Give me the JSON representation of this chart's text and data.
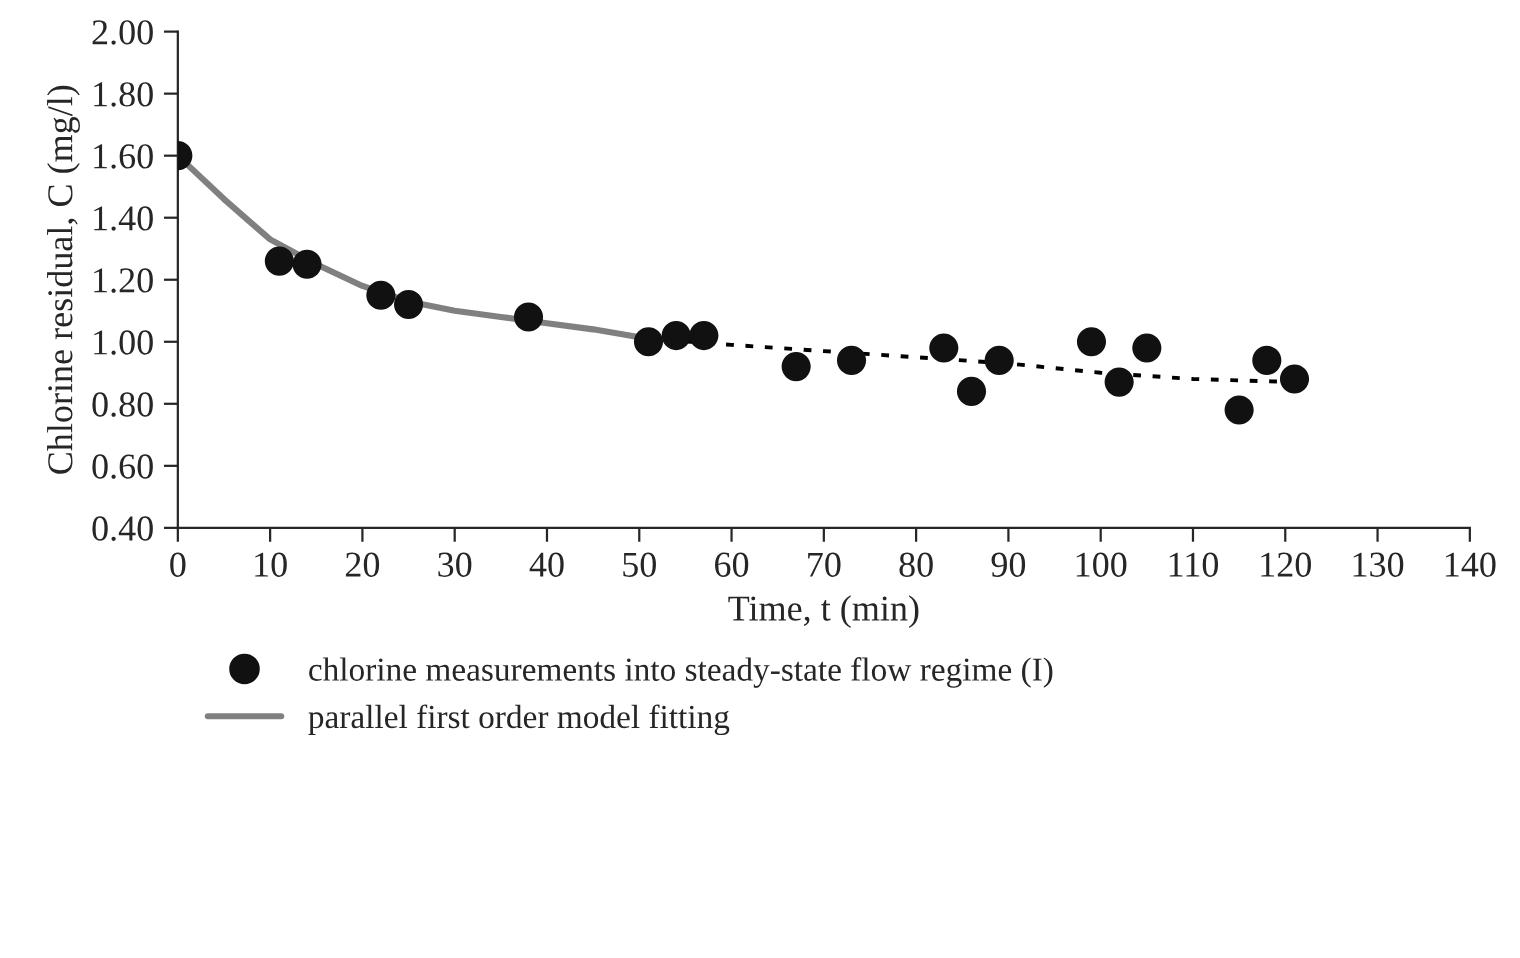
{
  "chart_data": {
    "type": "scatter",
    "xlabel": "Time, t (min)",
    "ylabel": "Chlorine residual, C (mg/l)",
    "xlim": [
      0,
      140
    ],
    "xticks": [
      0,
      10,
      20,
      30,
      40,
      50,
      60,
      70,
      80,
      90,
      100,
      110,
      120,
      130,
      140
    ],
    "ylim": [
      0.4,
      2.0
    ],
    "yticks": [
      {
        "value": 0.4,
        "label": "0.40"
      },
      {
        "value": 0.6,
        "label": "0.60"
      },
      {
        "value": 0.8,
        "label": "0.80"
      },
      {
        "value": 1.0,
        "label": "1.00"
      },
      {
        "value": 1.2,
        "label": "1.20"
      },
      {
        "value": 1.4,
        "label": "1.40"
      },
      {
        "value": 1.6,
        "label": "1.60"
      },
      {
        "value": 1.8,
        "label": "1.80"
      },
      {
        "value": 2.0,
        "label": "2.00"
      }
    ],
    "grid": false,
    "legend": "bottom",
    "series": [
      {
        "type": "line",
        "name": "parallel first order model fitting",
        "color": "#808080",
        "line_style": "solid",
        "x": [
          0,
          5,
          10,
          15,
          20,
          25,
          30,
          35,
          40,
          45,
          51
        ],
        "values": [
          1.6,
          1.46,
          1.33,
          1.25,
          1.18,
          1.13,
          1.1,
          1.08,
          1.06,
          1.04,
          1.01
        ]
      },
      {
        "type": "line",
        "color": "#000000",
        "line_style": "dotted",
        "x": [
          51,
          60,
          70,
          80,
          90,
          100,
          110,
          121
        ],
        "values": [
          1.01,
          0.99,
          0.97,
          0.95,
          0.93,
          0.9,
          0.88,
          0.87
        ]
      },
      {
        "name": "chlorine measurements into steady-state flow regime (I)",
        "color": "#111111",
        "marker": "circle",
        "x": [
          0,
          11,
          14,
          22,
          25,
          38,
          51,
          54,
          57,
          67,
          73,
          83,
          86,
          89,
          99,
          102,
          105,
          115,
          118,
          121
        ],
        "values": [
          1.6,
          1.26,
          1.25,
          1.15,
          1.12,
          1.08,
          1.0,
          1.02,
          1.02,
          0.92,
          0.94,
          0.98,
          0.84,
          0.94,
          1.0,
          0.87,
          0.98,
          0.78,
          0.94,
          0.88
        ]
      }
    ]
  }
}
